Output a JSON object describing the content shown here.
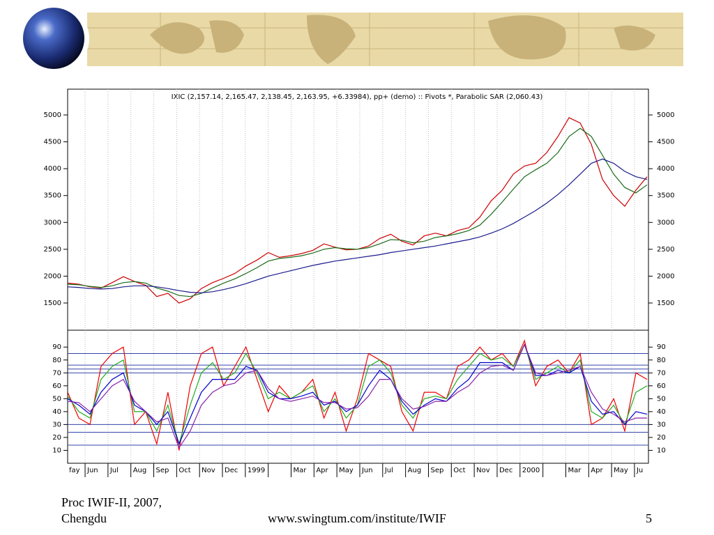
{
  "footer": {
    "left_lines": [
      "Proc IWIF-II, 2007,",
      "Chengdu"
    ],
    "url": "www.swingtum.com/institute/IWIF",
    "page": "5"
  },
  "chart_data": [
    {
      "type": "line",
      "title": "IXIC (2,157.14, 2,165.47, 2,138.45, 2,163.95, +6.33984), pp+ (demo) :: Pivots *, Parabolic SAR (2,060.43)",
      "ylim": [
        1020,
        5480
      ],
      "yticks": [
        1500,
        2000,
        2500,
        3000,
        3500,
        4000,
        4500,
        5000
      ],
      "series": [
        {
          "color": "#cc0000",
          "values": [
            1870,
            1850,
            1800,
            1780,
            1880,
            1990,
            1900,
            1830,
            1620,
            1680,
            1500,
            1580,
            1770,
            1880,
            1960,
            2050,
            2190,
            2300,
            2440,
            2350,
            2380,
            2420,
            2480,
            2600,
            2540,
            2490,
            2500,
            2560,
            2700,
            2780,
            2650,
            2580,
            2750,
            2800,
            2750,
            2850,
            2900,
            3100,
            3400,
            3600,
            3900,
            4050,
            4100,
            4300,
            4600,
            4950,
            4850,
            4450,
            3800,
            3500,
            3300,
            3600,
            3850
          ]
        },
        {
          "color": "#1a6b1a",
          "values": [
            1850,
            1840,
            1810,
            1790,
            1820,
            1880,
            1900,
            1870,
            1780,
            1720,
            1640,
            1620,
            1680,
            1780,
            1870,
            1950,
            2050,
            2160,
            2280,
            2330,
            2350,
            2380,
            2430,
            2500,
            2530,
            2510,
            2500,
            2530,
            2600,
            2680,
            2670,
            2620,
            2650,
            2720,
            2750,
            2790,
            2850,
            2950,
            3150,
            3380,
            3620,
            3850,
            3980,
            4100,
            4300,
            4600,
            4750,
            4600,
            4250,
            3900,
            3650,
            3550,
            3700
          ]
        },
        {
          "color": "#1a1a8c",
          "values": [
            1800,
            1790,
            1770,
            1760,
            1770,
            1800,
            1820,
            1820,
            1800,
            1770,
            1730,
            1700,
            1690,
            1710,
            1750,
            1800,
            1860,
            1930,
            2000,
            2050,
            2100,
            2150,
            2200,
            2240,
            2280,
            2310,
            2340,
            2370,
            2400,
            2440,
            2470,
            2500,
            2530,
            2560,
            2600,
            2640,
            2680,
            2730,
            2800,
            2880,
            2980,
            3100,
            3220,
            3360,
            3520,
            3700,
            3900,
            4100,
            4180,
            4100,
            3950,
            3850,
            3800
          ]
        }
      ]
    },
    {
      "type": "line",
      "ylim": [
        0,
        102
      ],
      "yticks": [
        10,
        20,
        30,
        40,
        50,
        60,
        70,
        80,
        90
      ],
      "levels": [
        85,
        76,
        73,
        70,
        30,
        24,
        14
      ],
      "level_color": "#3344aa",
      "x_labels": [
        "fay",
        "Jun",
        "Jul",
        "Aug",
        "Sep",
        "Oct",
        "Nov",
        "Dec",
        "1999",
        null,
        "Mar",
        "Apr",
        "May",
        "Jun",
        "Jul",
        "Aug",
        "Sep",
        "Oct",
        "Nov",
        "Dec",
        "2000",
        null,
        "Mar",
        "Apr",
        "May",
        "Ju"
      ],
      "series": [
        {
          "color": "#ee0000",
          "values": [
            55,
            35,
            30,
            75,
            85,
            90,
            30,
            40,
            15,
            55,
            10,
            60,
            85,
            90,
            60,
            75,
            90,
            65,
            40,
            60,
            50,
            55,
            65,
            35,
            55,
            25,
            50,
            85,
            80,
            75,
            40,
            25,
            55,
            55,
            50,
            75,
            80,
            90,
            80,
            85,
            75,
            95,
            60,
            75,
            80,
            70,
            85,
            30,
            35,
            50,
            25,
            70,
            65
          ]
        },
        {
          "color": "#22aa22",
          "values": [
            52,
            40,
            35,
            65,
            75,
            80,
            40,
            40,
            25,
            45,
            15,
            45,
            70,
            78,
            65,
            70,
            85,
            70,
            50,
            55,
            50,
            55,
            60,
            40,
            50,
            35,
            45,
            75,
            80,
            70,
            45,
            35,
            50,
            52,
            50,
            65,
            75,
            85,
            80,
            82,
            75,
            92,
            65,
            70,
            75,
            70,
            80,
            40,
            35,
            45,
            30,
            55,
            60
          ]
        },
        {
          "color": "#0000cc",
          "values": [
            50,
            45,
            38,
            55,
            65,
            70,
            45,
            40,
            30,
            40,
            15,
            35,
            55,
            65,
            65,
            65,
            75,
            72,
            55,
            50,
            50,
            52,
            55,
            45,
            48,
            40,
            45,
            60,
            72,
            65,
            48,
            38,
            45,
            50,
            48,
            58,
            65,
            78,
            78,
            78,
            72,
            92,
            68,
            68,
            72,
            70,
            75,
            48,
            38,
            40,
            30,
            40,
            38
          ]
        },
        {
          "color": "#8822aa",
          "values": [
            48,
            47,
            40,
            50,
            60,
            65,
            48,
            40,
            32,
            35,
            12,
            25,
            45,
            55,
            60,
            62,
            70,
            72,
            58,
            50,
            48,
            50,
            52,
            47,
            47,
            42,
            43,
            52,
            65,
            65,
            50,
            42,
            44,
            48,
            48,
            55,
            60,
            70,
            75,
            76,
            72,
            92,
            70,
            68,
            70,
            72,
            75,
            55,
            42,
            38,
            32,
            35,
            35
          ]
        }
      ]
    }
  ]
}
